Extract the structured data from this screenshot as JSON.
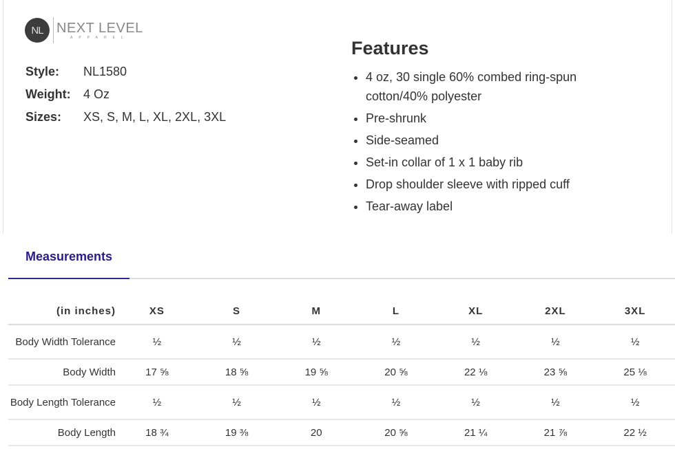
{
  "logo": {
    "initials": "NL",
    "name": "NEXT LEVEL",
    "sub": "APPAREL"
  },
  "specs": [
    {
      "label": "Style:",
      "value": "NL1580"
    },
    {
      "label": "Weight:",
      "value": "4 Oz"
    },
    {
      "label": "Sizes:",
      "value": "XS, S, M, L, XL, 2XL, 3XL"
    }
  ],
  "features": {
    "title": "Features",
    "items": [
      "4 oz, 30 single 60% combed ring-spun cotton/40% polyester",
      "Pre-shrunk",
      "Side-seamed",
      "Set-in collar of 1 x 1 baby rib",
      "Drop shoulder sleeve with ripped cuff",
      "Tear-away label"
    ]
  },
  "tabs": [
    {
      "label": "Measurements",
      "active": true
    }
  ],
  "accent": "#2a2a9a",
  "table": {
    "headers": [
      "(in inches)",
      "XS",
      "S",
      "M",
      "L",
      "XL",
      "2XL",
      "3XL"
    ],
    "rows": [
      {
        "label": "Body Width Tolerance",
        "values": [
          "½",
          "½",
          "½",
          "½",
          "½",
          "½",
          "½"
        ]
      },
      {
        "label": "Body Width",
        "values": [
          "17 ⅝",
          "18 ⅝",
          "19 ⅝",
          "20 ⅝",
          "22 ⅛",
          "23 ⅝",
          "25 ⅛"
        ]
      },
      {
        "label": "Body Length Tolerance",
        "values": [
          "½",
          "½",
          "½",
          "½",
          "½",
          "½",
          "½"
        ]
      },
      {
        "label": "Body Length",
        "values": [
          "18 ¾",
          "19 ⅜",
          "20",
          "20 ⅝",
          "21 ¼",
          "21 ⅞",
          "22 ½"
        ]
      }
    ]
  }
}
